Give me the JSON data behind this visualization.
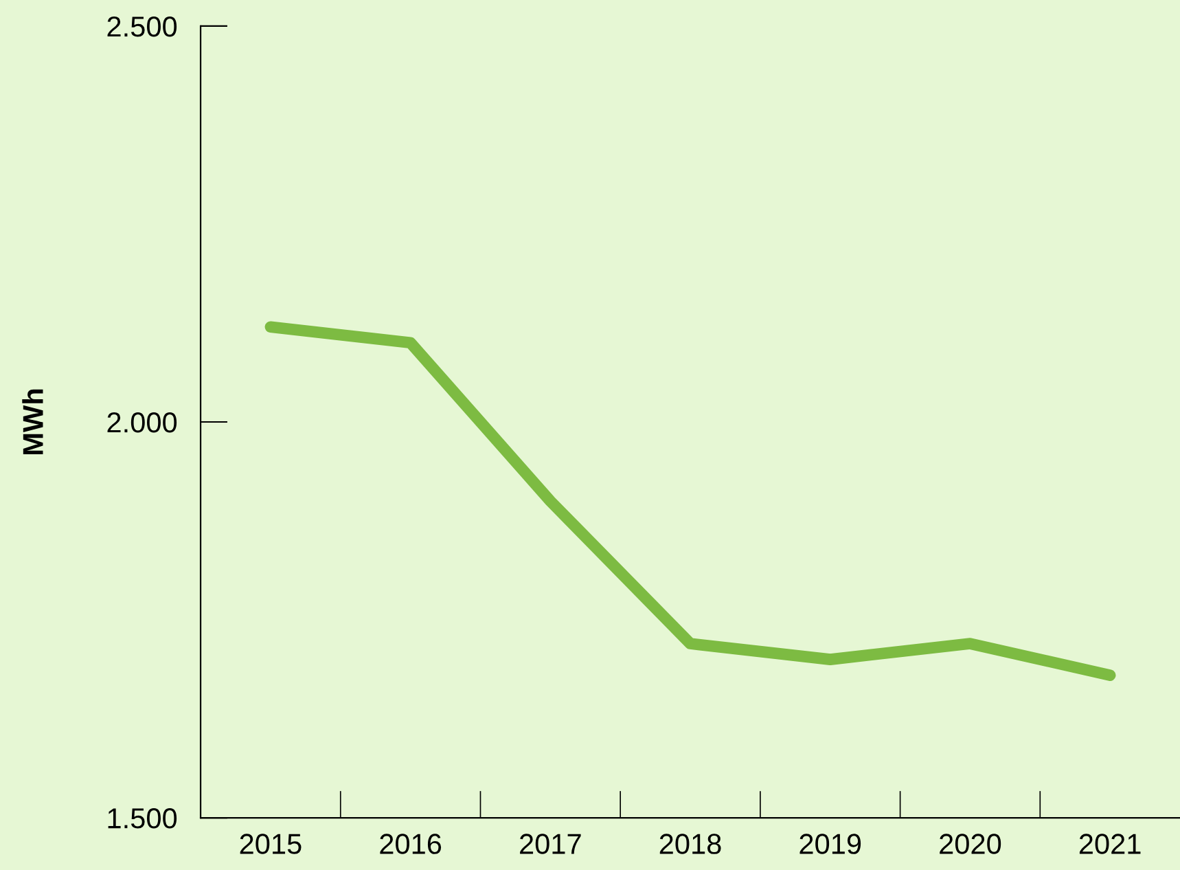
{
  "chart_data": {
    "type": "line",
    "ylabel": "MWh",
    "categories": [
      "2015",
      "2016",
      "2017",
      "2018",
      "2019",
      "2020",
      "2021"
    ],
    "series": [
      {
        "color": "#7dbb42",
        "values": [
          2120,
          2100,
          1900,
          1720,
          1700,
          1720,
          1680
        ]
      }
    ],
    "ylim": [
      1500,
      2500
    ],
    "yticks": [
      {
        "value": 1500,
        "label": "1.500"
      },
      {
        "value": 2000,
        "label": "2.000"
      },
      {
        "value": 2500,
        "label": "2.500"
      }
    ],
    "grid": false,
    "legend": false,
    "marker": "none",
    "line_style": "solid"
  }
}
